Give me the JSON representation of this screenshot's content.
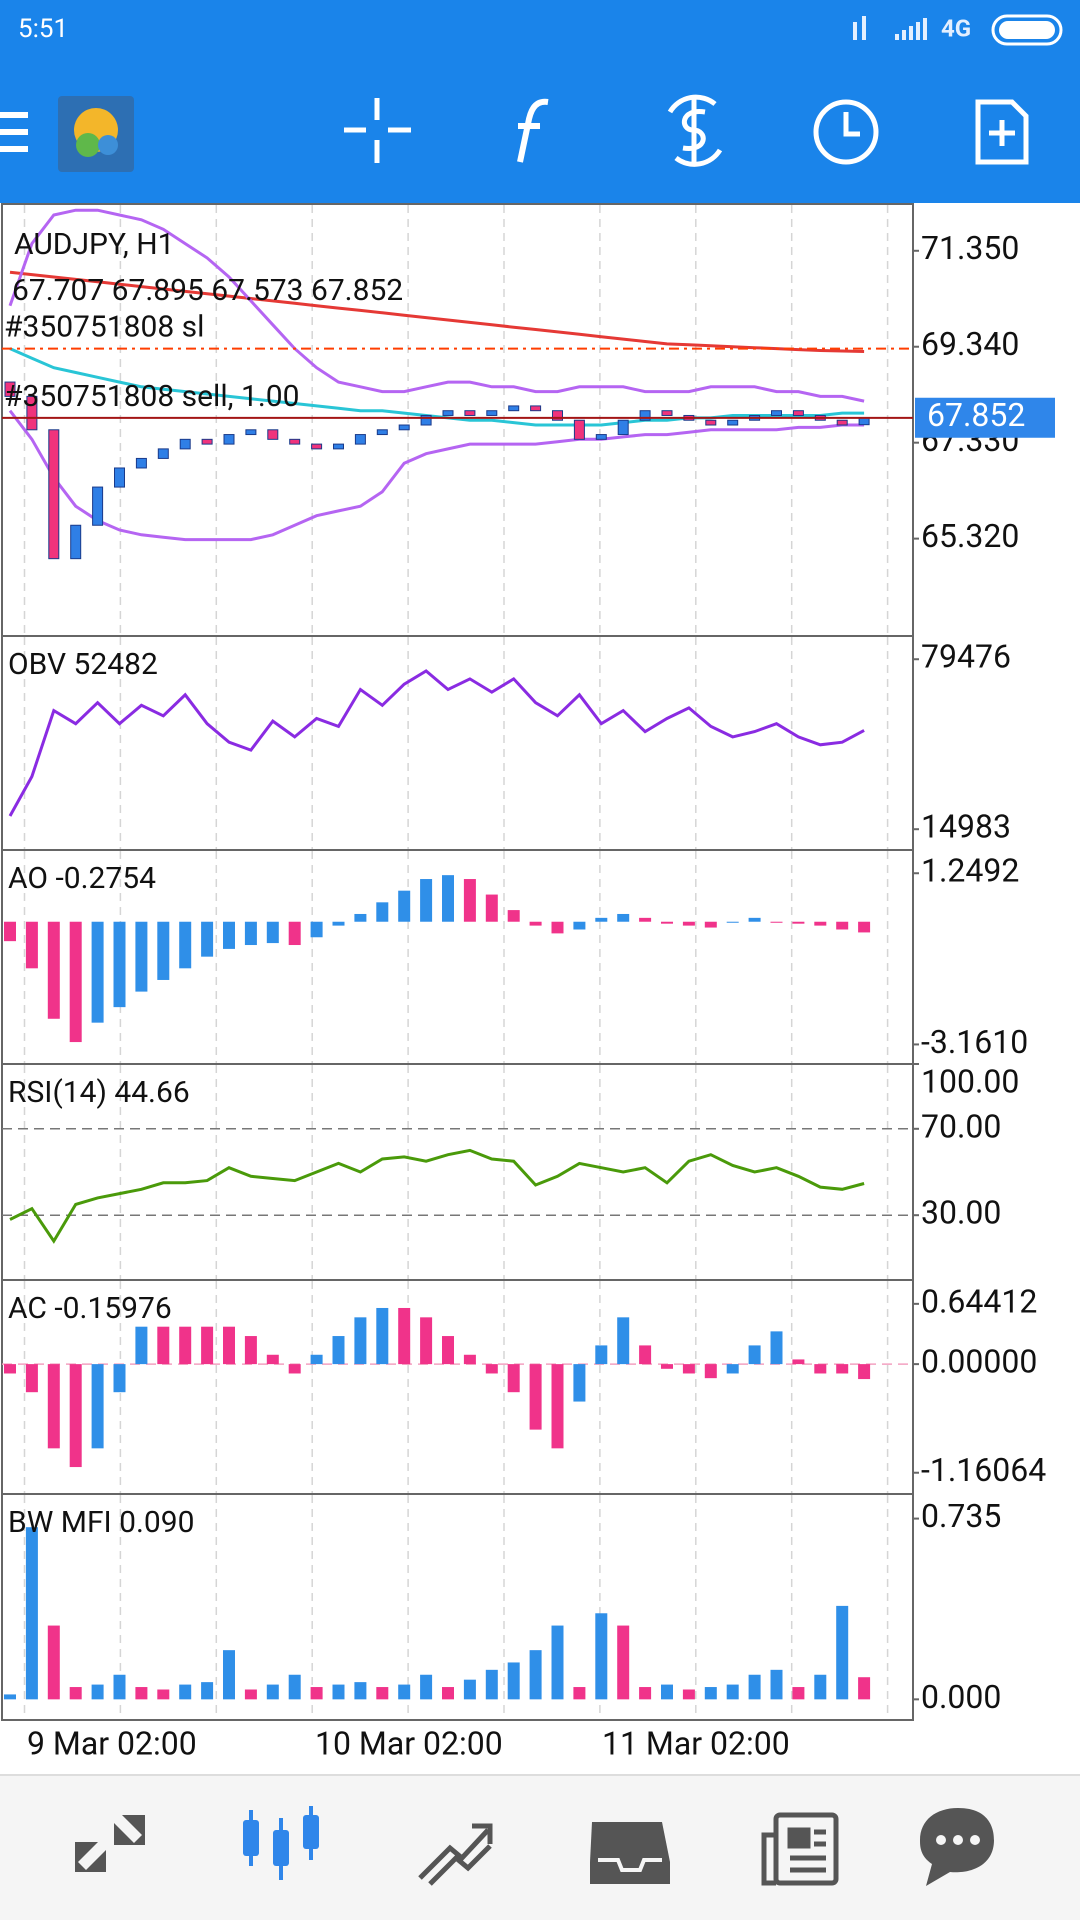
{
  "status_bar": {
    "time": "5:51",
    "network": "4G"
  },
  "x_labels": [
    "9 Mar 02:00",
    "10 Mar 02:00",
    "11 Mar 02:00"
  ],
  "chart_data": [
    {
      "type": "candlestick",
      "title": "AUDJPY, H1",
      "ohlc_text": "67.707 67.895 67.573 67.852",
      "ylim": [
        63.28,
        72.33
      ],
      "yticks": [
        {
          "value": 71.35,
          "label": "71.350"
        },
        {
          "value": 69.34,
          "label": "69.340"
        },
        {
          "value": 67.33,
          "label": "67.330"
        },
        {
          "value": 65.32,
          "label": "65.320"
        }
      ],
      "up_color": "#2f7fe6",
      "down_color": "#f0337c",
      "open": [
        68.6,
        68.3,
        67.6,
        64.9,
        65.6,
        66.4,
        66.8,
        67.0,
        67.2,
        67.4,
        67.3,
        67.5,
        67.6,
        67.4,
        67.3,
        67.2,
        67.3,
        67.5,
        67.6,
        67.7,
        67.9,
        68.0,
        67.9,
        68.0,
        68.1,
        68.0,
        67.8,
        67.4,
        67.5,
        67.8,
        68.0,
        67.9,
        67.8,
        67.7,
        67.8,
        67.9,
        68.0,
        67.9,
        67.8,
        67.707
      ],
      "close": [
        68.3,
        67.6,
        64.9,
        65.6,
        66.4,
        66.8,
        67.0,
        67.2,
        67.4,
        67.3,
        67.5,
        67.6,
        67.4,
        67.3,
        67.2,
        67.3,
        67.5,
        67.6,
        67.7,
        67.9,
        68.0,
        67.9,
        68.0,
        68.1,
        68.0,
        67.8,
        67.4,
        67.5,
        67.8,
        68.0,
        67.9,
        67.8,
        67.7,
        67.8,
        67.9,
        68.0,
        67.9,
        67.8,
        67.7,
        67.852
      ],
      "lines": [
        {
          "color": "#e53935",
          "values": [
            70.9,
            70.85,
            70.8,
            70.75,
            70.7,
            70.65,
            70.6,
            70.55,
            70.5,
            70.45,
            70.4,
            70.35,
            70.3,
            70.25,
            70.2,
            70.15,
            70.1,
            70.05,
            70.0,
            69.95,
            69.9,
            69.85,
            69.8,
            69.75,
            69.7,
            69.65,
            69.6,
            69.55,
            69.5,
            69.45,
            69.4,
            69.38,
            69.36,
            69.34,
            69.32,
            69.3,
            69.28,
            69.26,
            69.25,
            69.24
          ]
        },
        {
          "color": "#b565f2",
          "values": [
            70.2,
            71.5,
            72.1,
            72.2,
            72.2,
            72.1,
            72.0,
            71.8,
            71.5,
            71.2,
            70.8,
            70.3,
            69.8,
            69.3,
            68.9,
            68.6,
            68.5,
            68.4,
            68.4,
            68.5,
            68.6,
            68.6,
            68.5,
            68.5,
            68.4,
            68.4,
            68.5,
            68.5,
            68.5,
            68.4,
            68.4,
            68.4,
            68.5,
            68.5,
            68.5,
            68.4,
            68.4,
            68.3,
            68.3,
            68.2
          ]
        },
        {
          "color": "#b565f2",
          "values": [
            68.0,
            67.4,
            66.6,
            66.0,
            65.7,
            65.5,
            65.4,
            65.35,
            65.3,
            65.3,
            65.3,
            65.3,
            65.4,
            65.6,
            65.8,
            65.9,
            66.0,
            66.3,
            66.9,
            67.1,
            67.2,
            67.3,
            67.3,
            67.3,
            67.3,
            67.35,
            67.4,
            67.4,
            67.45,
            67.5,
            67.5,
            67.55,
            67.6,
            67.6,
            67.6,
            67.6,
            67.65,
            67.65,
            67.7,
            67.7
          ]
        },
        {
          "color": "#29c5d6",
          "values": [
            69.3,
            69.1,
            68.9,
            68.8,
            68.7,
            68.6,
            68.5,
            68.45,
            68.4,
            68.35,
            68.3,
            68.25,
            68.2,
            68.15,
            68.1,
            68.05,
            68.0,
            68.0,
            67.95,
            67.9,
            67.85,
            67.8,
            67.8,
            67.75,
            67.7,
            67.7,
            67.7,
            67.7,
            67.75,
            67.8,
            67.8,
            67.85,
            67.85,
            67.9,
            67.9,
            67.9,
            67.9,
            67.9,
            67.95,
            67.95
          ]
        }
      ],
      "orders": [
        {
          "label": "#350751808 sl",
          "value": 69.3,
          "color": "#ff3d00",
          "dashed": true
        },
        {
          "label": "#350751808 sell, 1.00",
          "value": 67.85,
          "color": "#a31515",
          "dashed": false
        }
      ],
      "last_price": 67.852,
      "last_price_color": "#2f86ea"
    },
    {
      "type": "line",
      "title": "OBV 52482",
      "color": "#8a2be2",
      "ylim": [
        7095,
        88292
      ],
      "yticks": [
        79476,
        14983
      ],
      "values": [
        20000,
        35000,
        60000,
        55000,
        63000,
        55000,
        62000,
        58000,
        66000,
        55000,
        48000,
        45000,
        56000,
        50000,
        57000,
        54000,
        68000,
        62000,
        70000,
        75000,
        68000,
        72000,
        67000,
        72000,
        63000,
        58000,
        66000,
        55000,
        60000,
        52000,
        57000,
        61000,
        54000,
        50000,
        52000,
        55000,
        50000,
        47000,
        48000,
        52482
      ]
    },
    {
      "type": "bar",
      "title": "AO -0.2754",
      "up_color": "#2f8fe8",
      "down_color": "#f0338a",
      "ylim": [
        -3.665,
        1.848
      ],
      "yticks": [
        1.2492,
        {
          "value": -3.161,
          "label": "-3.1610"
        }
      ],
      "values": [
        -0.5,
        -1.2,
        -2.5,
        -3.1,
        -2.6,
        -2.2,
        -1.8,
        -1.5,
        -1.2,
        -0.9,
        -0.7,
        -0.6,
        -0.55,
        -0.6,
        -0.4,
        -0.1,
        0.2,
        0.5,
        0.8,
        1.1,
        1.2,
        1.1,
        0.7,
        0.3,
        -0.1,
        -0.3,
        -0.2,
        0.1,
        0.2,
        0.1,
        -0.05,
        -0.1,
        -0.15,
        0.0,
        0.1,
        0.0,
        -0.05,
        -0.1,
        -0.2,
        -0.2754
      ]
    },
    {
      "type": "line",
      "title": "RSI(14) 44.66",
      "color": "#4a9a0a",
      "ylim": [
        0,
        100
      ],
      "yticks": [
        {
          "value": 100,
          "label": "100.00"
        },
        {
          "value": 70,
          "label": "70.00"
        },
        {
          "value": 30,
          "label": "30.00"
        }
      ],
      "levels": [
        70,
        30
      ],
      "values": [
        28,
        33,
        18,
        35,
        38,
        40,
        42,
        45,
        45,
        46,
        52,
        48,
        47,
        46,
        50,
        54,
        50,
        56,
        57,
        55,
        58,
        60,
        56,
        55,
        44,
        48,
        54,
        52,
        50,
        52,
        45,
        55,
        58,
        53,
        50,
        52,
        48,
        43,
        42,
        44.66
      ]
    },
    {
      "type": "bar",
      "title": "AC -0.15976",
      "up_color": "#2f8fe8",
      "down_color": "#f0338a",
      "ylim": [
        -1.388,
        0.899
      ],
      "yticks": [
        0.64412,
        {
          "value": 0,
          "label": "0.00000"
        },
        -1.16064
      ],
      "levels": [
        0
      ],
      "values": [
        -0.1,
        -0.3,
        -0.9,
        -1.1,
        -0.9,
        -0.3,
        0.4,
        0.4,
        0.4,
        0.4,
        0.4,
        0.3,
        0.1,
        -0.1,
        0.1,
        0.3,
        0.5,
        0.6,
        0.6,
        0.5,
        0.3,
        0.1,
        -0.1,
        -0.3,
        -0.7,
        -0.9,
        -0.4,
        0.2,
        0.5,
        0.2,
        -0.05,
        -0.1,
        -0.15,
        -0.1,
        0.2,
        0.35,
        0.05,
        -0.1,
        -0.1,
        -0.15976
      ]
    },
    {
      "type": "bar",
      "title": "BW MFI 0.090",
      "up_color": "#2f8fe8",
      "down_color": "#f0338a",
      "ylim": [
        -0.084,
        0.835
      ],
      "yticks": [
        0.735,
        {
          "value": 0,
          "label": "0.000"
        }
      ],
      "values": [
        0.02,
        0.7,
        0.3,
        0.05,
        0.06,
        0.1,
        0.05,
        0.04,
        0.06,
        0.07,
        0.2,
        0.04,
        0.06,
        0.1,
        0.05,
        0.06,
        0.07,
        0.05,
        0.06,
        0.1,
        0.05,
        0.08,
        0.12,
        0.15,
        0.2,
        0.3,
        0.05,
        0.35,
        0.3,
        0.05,
        0.06,
        0.04,
        0.05,
        0.06,
        0.1,
        0.12,
        0.05,
        0.1,
        0.38,
        0.09
      ]
    }
  ]
}
